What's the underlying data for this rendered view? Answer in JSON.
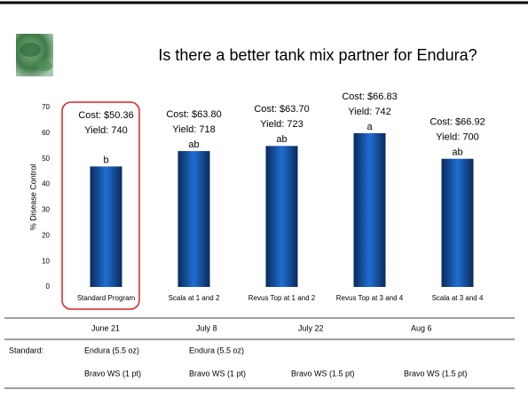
{
  "chart_data": {
    "type": "bar",
    "title": "Is there a better tank mix partner for Endura?",
    "y_label": "% Disease Control",
    "categories": [
      "Standard Program",
      "Scala at 1 and 2",
      "Revus Top at 1 and 2",
      "Revus Top at 3 and 4",
      "Scala at 3 and 4"
    ],
    "values": [
      47,
      53,
      55,
      60,
      50
    ],
    "color": "#1f6fd1",
    "ylim": [
      0,
      70
    ],
    "yticks": [
      0,
      10,
      20,
      30,
      40,
      50,
      60,
      70
    ],
    "grid": false,
    "annotations": [
      {
        "cost": "Cost: $50.36",
        "yield": "Yield: 740",
        "letter": "b"
      },
      {
        "cost": "Cost: $63.80",
        "yield": "Yield: 718",
        "letter": "ab"
      },
      {
        "cost": "Cost: $63.70",
        "yield": "Yield: 723",
        "letter": "ab"
      },
      {
        "cost": "Cost: $66.83",
        "yield": "Yield: 742",
        "letter": "a"
      },
      {
        "cost": "Cost: $66.92",
        "yield": "Yield: 700",
        "letter": "ab"
      }
    ]
  },
  "table": {
    "columns": [
      "June 21",
      "July 8",
      "July 22",
      "Aug 6"
    ],
    "rows": [
      [
        "Standard:",
        "Endura (5.5 oz)",
        "Endura (5.5 oz)",
        null,
        null
      ],
      [
        null,
        "Bravo WS (1 pt)",
        "Bravo WS (1 pt)",
        "Bravo WS (1.5 pt)",
        "Bravo WS (1.5 pt)"
      ]
    ]
  }
}
